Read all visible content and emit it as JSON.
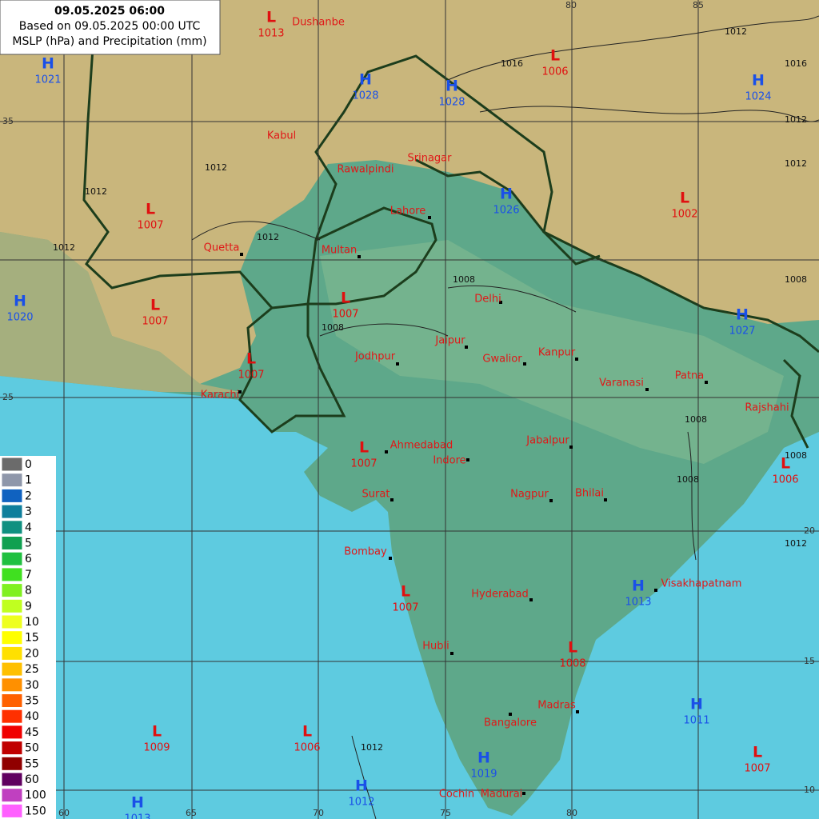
{
  "header": {
    "title": "09.05.2025 06:00",
    "subtitle": "Based on 09.05.2025 00:00 UTC",
    "caption": "MSLP (hPa) and Precipitation (mm)"
  },
  "legend": {
    "items": [
      {
        "label": 0,
        "color": "#6b6b6b"
      },
      {
        "label": 1,
        "color": "#8f97aa"
      },
      {
        "label": 2,
        "color": "#1062c0"
      },
      {
        "label": 3,
        "color": "#0f7f9c"
      },
      {
        "label": 4,
        "color": "#109080"
      },
      {
        "label": 5,
        "color": "#10a050"
      },
      {
        "label": 6,
        "color": "#20c040"
      },
      {
        "label": 7,
        "color": "#40e020"
      },
      {
        "label": 8,
        "color": "#80f020"
      },
      {
        "label": 9,
        "color": "#c0ff20"
      },
      {
        "label": 10,
        "color": "#eeff20"
      },
      {
        "label": 15,
        "color": "#ffff00"
      },
      {
        "label": 20,
        "color": "#ffe000"
      },
      {
        "label": 25,
        "color": "#ffc000"
      },
      {
        "label": 30,
        "color": "#ff9000"
      },
      {
        "label": 35,
        "color": "#ff6000"
      },
      {
        "label": 40,
        "color": "#ff3000"
      },
      {
        "label": 45,
        "color": "#f00000"
      },
      {
        "label": 50,
        "color": "#c00000"
      },
      {
        "label": 55,
        "color": "#900000"
      },
      {
        "label": 60,
        "color": "#600060"
      },
      {
        "label": 100,
        "color": "#c040c0"
      },
      {
        "label": 150,
        "color": "#ff60ff"
      }
    ]
  },
  "pressure_centers": [
    {
      "kind": "L",
      "value": 1013
    },
    {
      "kind": "H",
      "value": 1021
    },
    {
      "kind": "H",
      "value": 1028
    },
    {
      "kind": "H",
      "value": 1028
    },
    {
      "kind": "L",
      "value": 1006
    },
    {
      "kind": "H",
      "value": 1024
    },
    {
      "kind": "L",
      "value": 1007
    },
    {
      "kind": "H",
      "value": 1026
    },
    {
      "kind": "L",
      "value": 1002
    },
    {
      "kind": "H",
      "value": 1020
    },
    {
      "kind": "L",
      "value": 1007
    },
    {
      "kind": "L",
      "value": 1007
    },
    {
      "kind": "L",
      "value": 1007
    },
    {
      "kind": "H",
      "value": 1027
    },
    {
      "kind": "L",
      "value": 1007
    },
    {
      "kind": "L",
      "value": 1006
    },
    {
      "kind": "H",
      "value": 1013
    },
    {
      "kind": "L",
      "value": 1007
    },
    {
      "kind": "L",
      "value": 1008
    },
    {
      "kind": "H",
      "value": 1011
    },
    {
      "kind": "L",
      "value": 1009
    },
    {
      "kind": "L",
      "value": 1006
    },
    {
      "kind": "H",
      "value": 1019
    },
    {
      "kind": "L",
      "value": 1007
    },
    {
      "kind": "H",
      "value": 1012
    },
    {
      "kind": "H",
      "value": 1013
    }
  ],
  "cities": [
    "Dushanbe",
    "Kabul",
    "Rawalpindi",
    "Srinagar",
    "Lahore",
    "Multan",
    "Quetta",
    "Delhi",
    "Jaipur",
    "Gwalior",
    "Kanpur",
    "Jodhpur",
    "Varanasi",
    "Patna",
    "Karachi",
    "Rajshahi",
    "Ahmedabad",
    "Indore",
    "Jabalpur",
    "Surat",
    "Nagpur",
    "Bhilai",
    "Bombay",
    "Hyderabad",
    "Visakhapatnam",
    "Hubli",
    "Madras",
    "Bangalore",
    "Cochin",
    "Madurai"
  ],
  "isobars": [
    1012,
    1012,
    1016,
    1012,
    1012,
    1012,
    1008,
    1008,
    1012,
    1008,
    1016,
    1012,
    1008,
    1008,
    1008,
    1012,
    1012
  ],
  "grid_labels": [
    80,
    85,
    60,
    65,
    70,
    75,
    80,
    35,
    25,
    20,
    15,
    10
  ]
}
